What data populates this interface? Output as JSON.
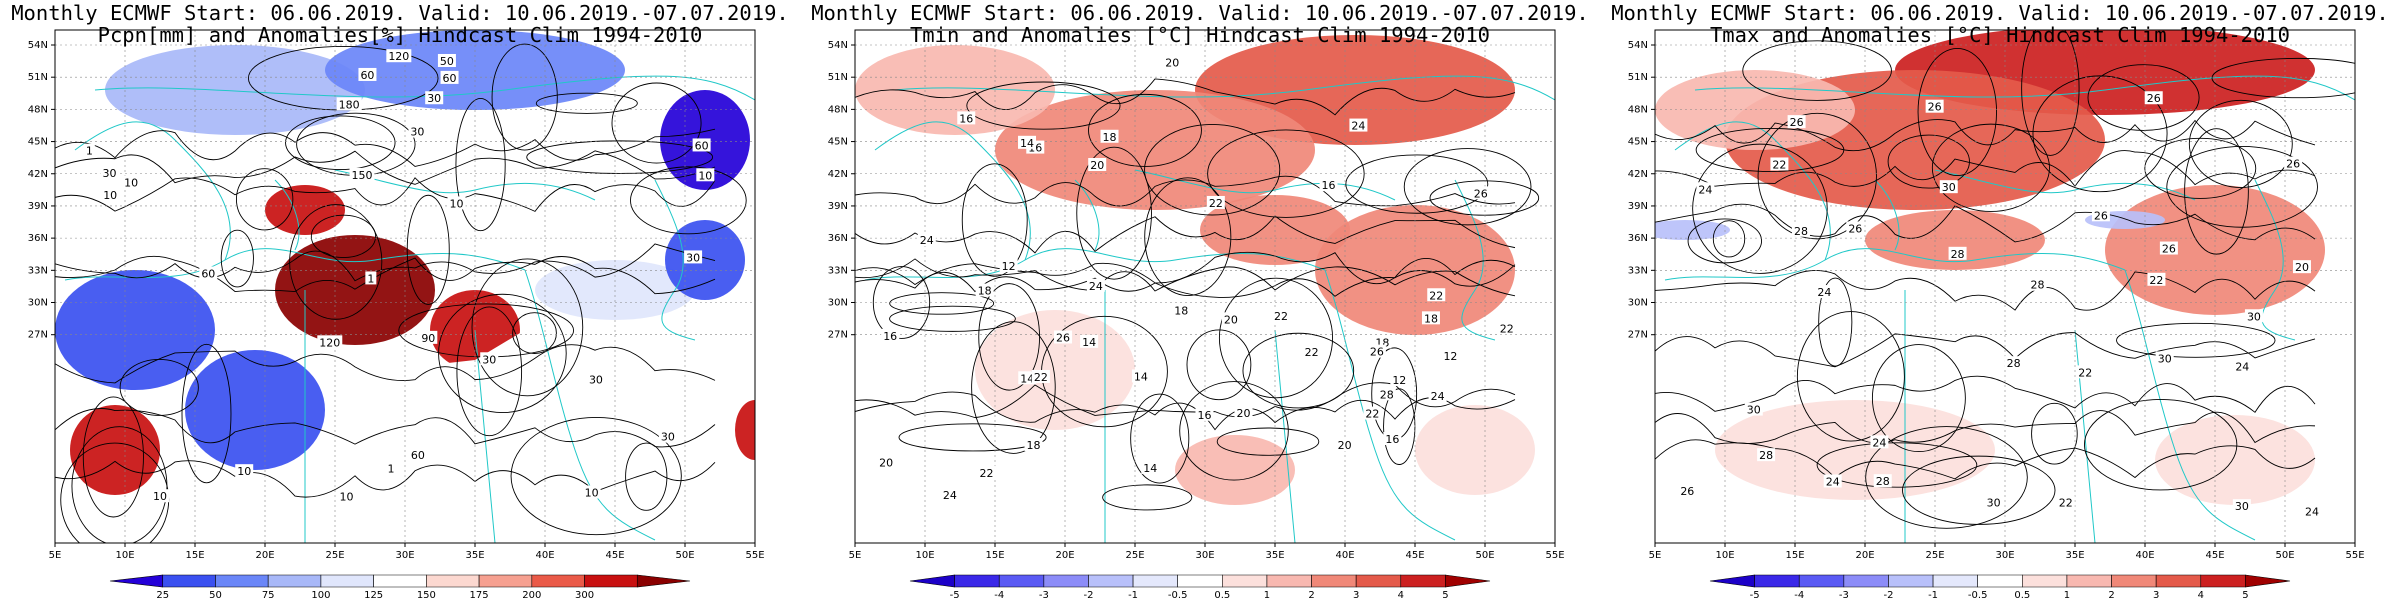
{
  "panels": [
    {
      "id": "pcpn",
      "title_line1": "Monthly ECMWF Start: 06.06.2019. Valid: 10.06.2019.-07.07.2019.",
      "title_line2": "Pcpn[mm] and Anomalies[%] Hindcast Clim 1994-2010",
      "field_type": "precip-anomaly",
      "lat_labels": [
        "54N",
        "51N",
        "48N",
        "45N",
        "42N",
        "39N",
        "36N",
        "33N",
        "30N",
        "27N"
      ],
      "lon_labels": [
        "5E",
        "10E",
        "15E",
        "20E",
        "25E",
        "30E",
        "35E",
        "40E",
        "45E",
        "50E",
        "55E"
      ],
      "colorbar": {
        "labels": [
          "25",
          "50",
          "75",
          "100",
          "125",
          "150",
          "175",
          "200",
          "300"
        ],
        "colors": [
          "#2400d8",
          "#3a50f0",
          "#6a86f8",
          "#a8b8f8",
          "#e0e6fc",
          "#ffffff",
          "#fcd8d0",
          "#f6a090",
          "#ea5a48",
          "#c81010",
          "#8a0000"
        ]
      },
      "contour_labels": [
        "120",
        "180",
        "150",
        "60",
        "30",
        "90",
        "60",
        "30",
        "10",
        "60",
        "30",
        "120",
        "30",
        "10",
        "10",
        "30",
        "60",
        "10",
        "50",
        "10",
        "10",
        "30",
        "30",
        "60",
        "10",
        "1",
        "1",
        "1",
        "10"
      ]
    },
    {
      "id": "tmin",
      "title_line1": "Monthly ECMWF Start: 06.06.2019. Valid: 10.06.2019.-07.07.2019.",
      "title_line2": "Tmin and Anomalies [°C] Hindcast Clim 1994-2010",
      "field_type": "temp-anomaly",
      "lat_labels": [
        "54N",
        "51N",
        "48N",
        "45N",
        "42N",
        "39N",
        "36N",
        "33N",
        "30N",
        "27N"
      ],
      "lon_labels": [
        "5E",
        "10E",
        "15E",
        "20E",
        "25E",
        "30E",
        "35E",
        "40E",
        "45E",
        "50E",
        "55E"
      ],
      "colorbar": {
        "labels": [
          "-5",
          "-4",
          "-3",
          "-2",
          "-1",
          "-0.5",
          "0.5",
          "1",
          "2",
          "3",
          "4",
          "5"
        ],
        "colors": [
          "#1c00c8",
          "#3a28e8",
          "#5a5af4",
          "#8c8cf8",
          "#b8c0fa",
          "#e4e8fc",
          "#ffffff",
          "#fce0dc",
          "#f8b8b0",
          "#f08878",
          "#e45a4a",
          "#cc2020",
          "#a00000"
        ]
      },
      "contour_labels": [
        "14",
        "14",
        "12",
        "18",
        "16",
        "20",
        "18",
        "16",
        "22",
        "20",
        "18",
        "16",
        "14",
        "12",
        "12",
        "16",
        "14",
        "18",
        "20",
        "22",
        "16",
        "24",
        "20",
        "22",
        "18",
        "22",
        "24",
        "16",
        "20",
        "14",
        "22",
        "26",
        "22",
        "18",
        "24",
        "26",
        "28",
        "22",
        "22",
        "20",
        "24",
        "26",
        "24"
      ]
    },
    {
      "id": "tmax",
      "title_line1": "Monthly ECMWF Start: 06.06.2019. Valid: 10.06.2019.-07.07.2019.",
      "title_line2": "Tmax and Anomalies [°C] Hindcast Clim 1994-2010",
      "field_type": "temp-anomaly",
      "lat_labels": [
        "54N",
        "51N",
        "48N",
        "45N",
        "42N",
        "39N",
        "36N",
        "33N",
        "30N",
        "27N"
      ],
      "lon_labels": [
        "5E",
        "10E",
        "15E",
        "20E",
        "25E",
        "30E",
        "35E",
        "40E",
        "45E",
        "50E",
        "55E"
      ],
      "colorbar": {
        "labels": [
          "-5",
          "-4",
          "-3",
          "-2",
          "-1",
          "-0.5",
          "0.5",
          "1",
          "2",
          "3",
          "4",
          "5"
        ],
        "colors": [
          "#1c00c8",
          "#3a28e8",
          "#5a5af4",
          "#8c8cf8",
          "#b8c0fa",
          "#e4e8fc",
          "#ffffff",
          "#fce0dc",
          "#f8b8b0",
          "#f08878",
          "#e45a4a",
          "#cc2020",
          "#a00000"
        ]
      },
      "contour_labels": [
        "22",
        "24",
        "26",
        "28",
        "26",
        "28",
        "30",
        "24",
        "22",
        "28",
        "28",
        "26",
        "30",
        "26",
        "22",
        "24",
        "28",
        "26",
        "24",
        "22",
        "30",
        "28",
        "26",
        "24",
        "30",
        "24",
        "26",
        "30",
        "20",
        "30",
        "26"
      ]
    }
  ]
}
